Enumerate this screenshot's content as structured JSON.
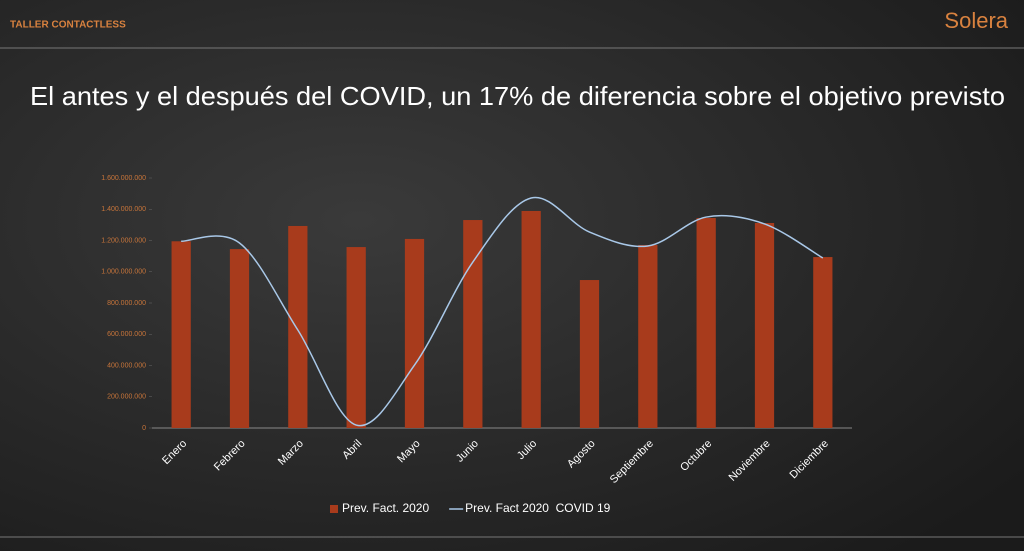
{
  "header": {
    "section": "TALLER CONTACTLESS",
    "logo": "Solera"
  },
  "chart_data": {
    "type": "bar",
    "title": "El antes y el después del COVID, un 17% de diferencia sobre el objetivo previsto",
    "categories": [
      "Enero",
      "Febrero",
      "Marzo",
      "Abril",
      "Mayo",
      "Junio",
      "Julio",
      "Agosto",
      "Septiembre",
      "Octubre",
      "Noviembre",
      "Diciembre"
    ],
    "series": [
      {
        "name": "Prev. Fact. 2020",
        "type": "bar",
        "color": "#a83b1c",
        "values": [
          1195000000,
          1145000000,
          1293000000,
          1158000000,
          1210000000,
          1331000000,
          1389000000,
          947000000,
          1171000000,
          1344000000,
          1312000000,
          1094000000
        ]
      },
      {
        "name": "Prev. Fact 2020  COVID 19",
        "type": "line",
        "color": "#a9c8e8",
        "values": [
          1195000000,
          1184000000,
          627000000,
          19000000,
          403000000,
          1062000000,
          1472000000,
          1254000000,
          1165000000,
          1350000000,
          1306000000,
          1088000000
        ]
      }
    ],
    "ylim": [
      0,
      1600000000
    ],
    "yticks": [
      0,
      {
        "value": 200000000,
        "label": "200.000.000"
      },
      {
        "value": 400000000,
        "label": "400.000.000"
      },
      {
        "value": 600000000,
        "label": "600.000.000"
      },
      {
        "value": 800000000,
        "label": "800.000.000"
      },
      {
        "value": 1000000000,
        "label": "1.000.000.000"
      },
      {
        "value": 1200000000,
        "label": "1.200.000.000"
      },
      {
        "value": 1400000000,
        "label": "1.400.000.000"
      },
      {
        "value": 1600000000,
        "label": "1.600.000.000"
      }
    ],
    "legend": "bottom"
  }
}
